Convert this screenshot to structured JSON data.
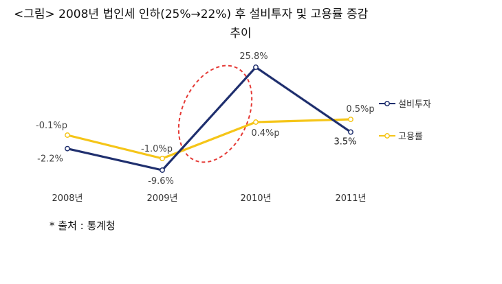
{
  "title_line1": "<그림> 2008년 법인세 인하(25%→22%) 후 설비투자 및 고용률 증감",
  "title_line2": "추이",
  "source": "* 출처 : 통계청",
  "chart_data": {
    "type": "line",
    "categories": [
      "2008년",
      "2009년",
      "2010년",
      "2011년"
    ],
    "series": [
      {
        "name": "설비투자",
        "color": "#1f2f6e",
        "values": [
          -2.2,
          -9.6,
          25.8,
          3.5
        ],
        "labels": [
          "-2.2%",
          "-9.6%",
          "25.8%",
          "3.5%"
        ]
      },
      {
        "name": "고용률",
        "color": "#f5c518",
        "values": [
          -0.1,
          -1.0,
          0.4,
          0.5
        ],
        "labels": [
          "-0.1%p",
          "-1.0%p",
          "0.4%p",
          "0.5%p"
        ]
      }
    ],
    "legend_position": "right",
    "highlight": "red dashed ellipse around 2009–2010 rise",
    "highlight_color": "#e53935"
  }
}
